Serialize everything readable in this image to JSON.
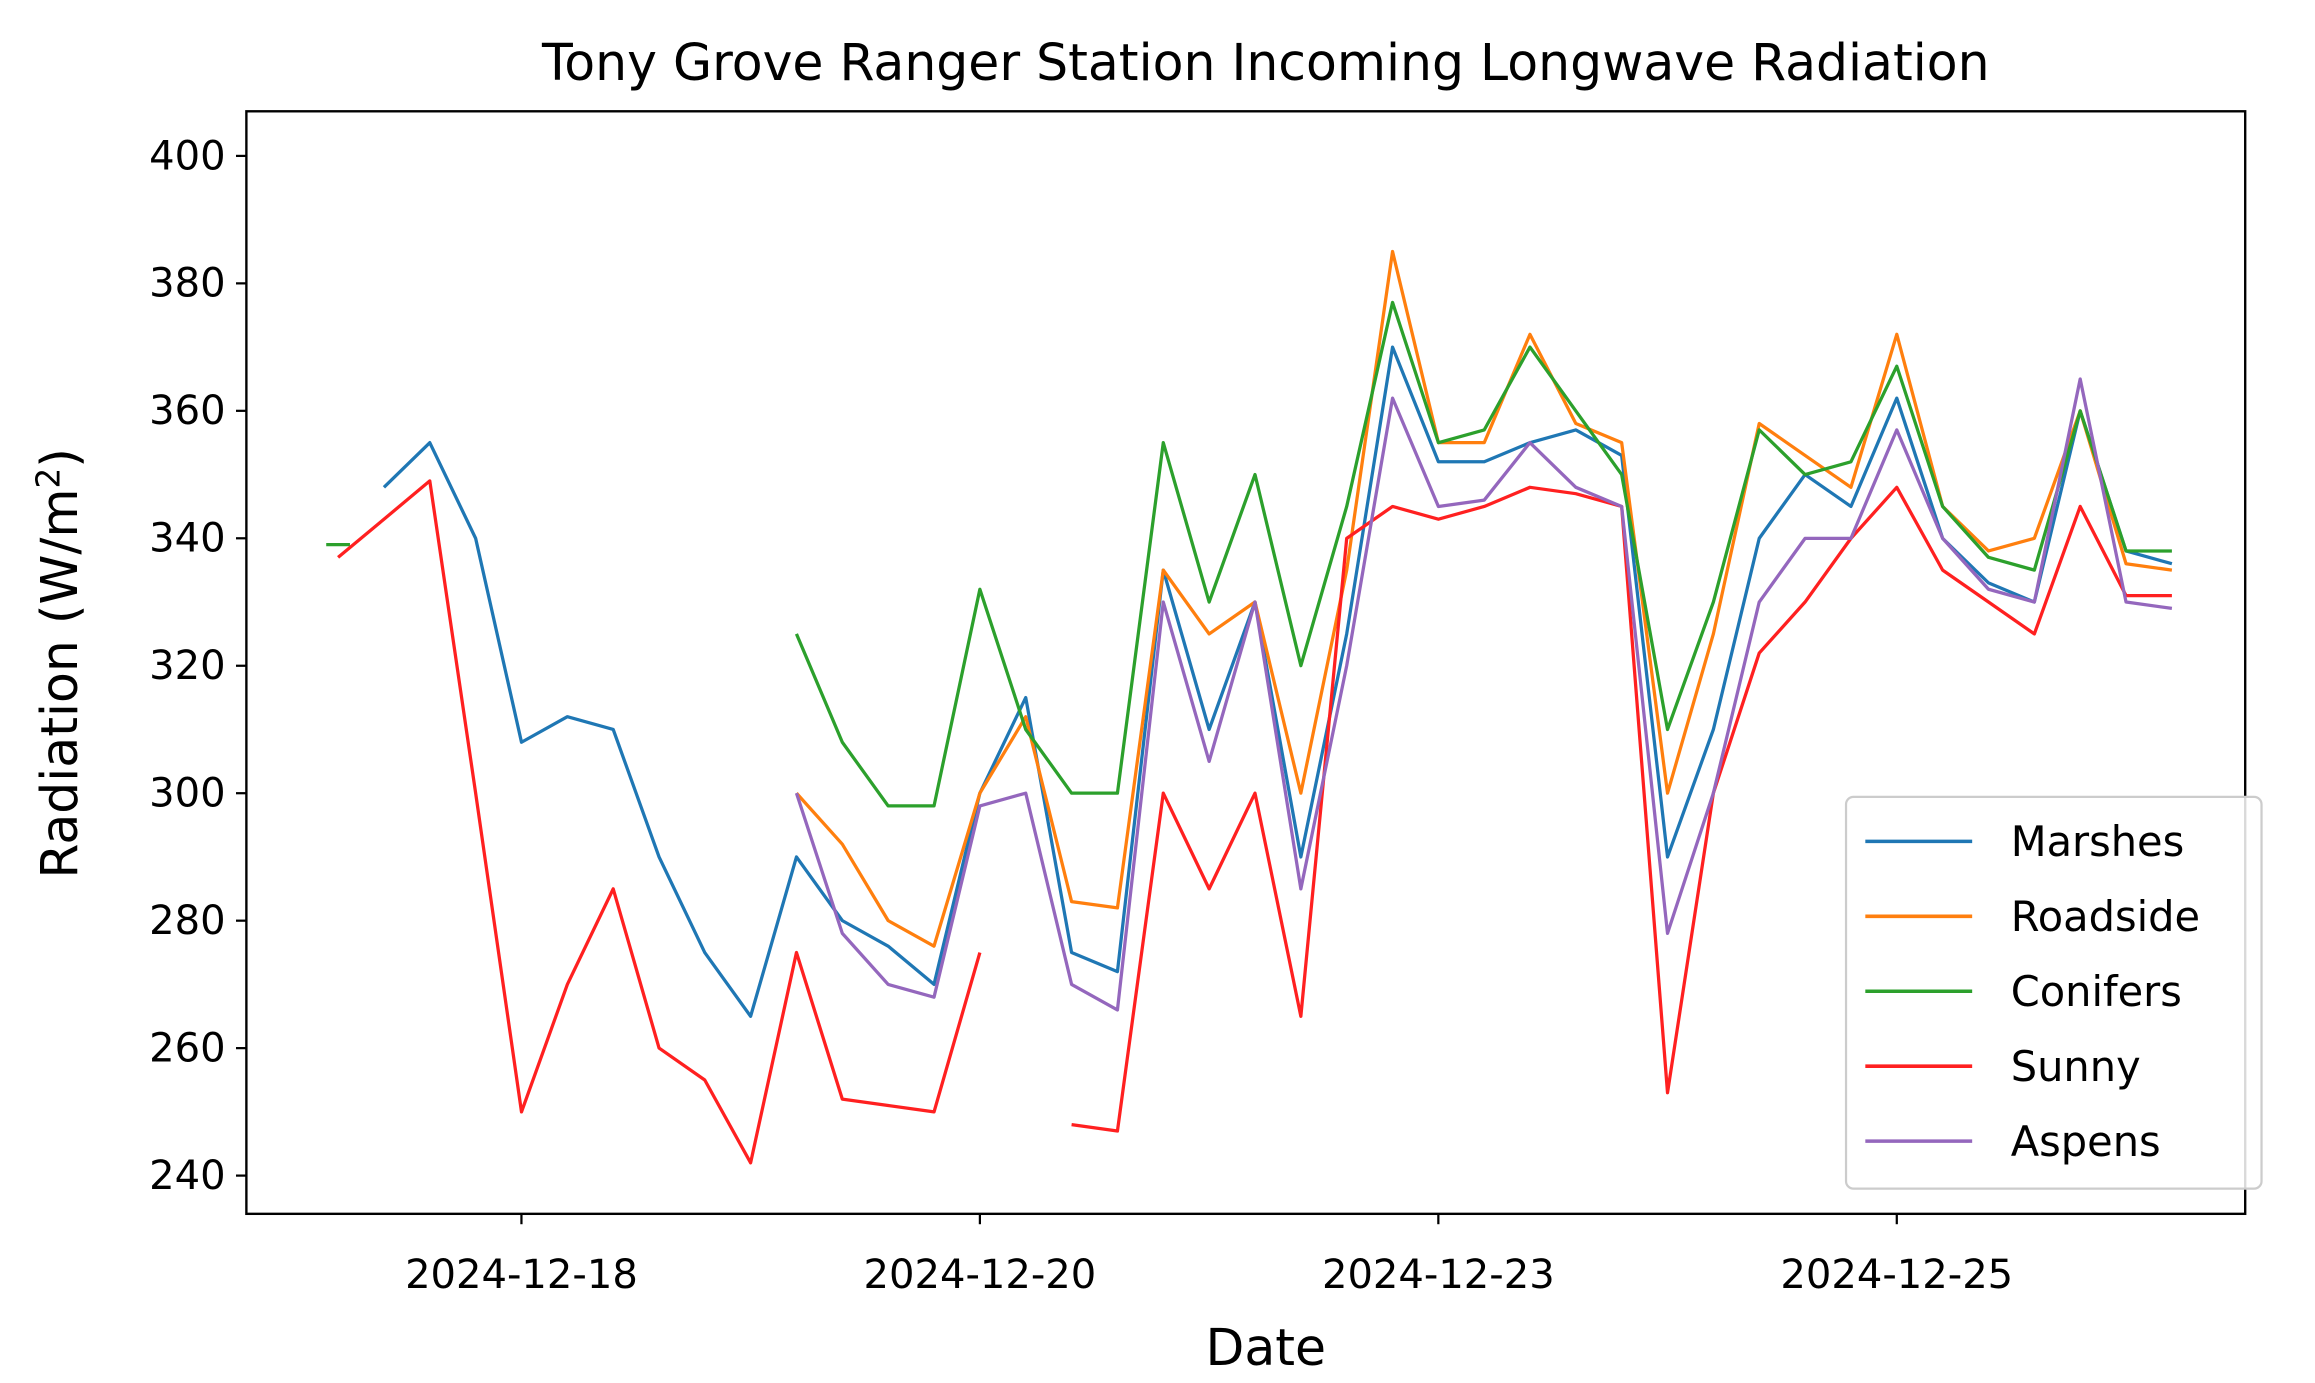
{
  "chart_data": {
    "type": "line",
    "title": "Tony Grove Ranger Station Incoming Longwave Radiation",
    "xlabel": "Date",
    "ylabel": "Radiation (W/m²)",
    "ylabel_main": "Radiation (W/m",
    "ylabel_sup": "2",
    "ylabel_close": ")",
    "ylim": [
      234,
      407
    ],
    "xlim_days_of_december": [
      16.5,
      27.4
    ],
    "yticks": [
      240,
      260,
      280,
      300,
      320,
      340,
      360,
      380,
      400
    ],
    "xticks": [
      {
        "value": 18.0,
        "label": "2024-12-18"
      },
      {
        "value": 20.5,
        "label": "2024-12-20"
      },
      {
        "value": 23.0,
        "label": "2024-12-23"
      },
      {
        "value": 25.5,
        "label": "2024-12-25"
      }
    ],
    "legend_position": "lower-right",
    "grid": false,
    "x": [
      17.0,
      17.25,
      17.5,
      17.75,
      18.0,
      18.25,
      18.5,
      18.75,
      19.0,
      19.25,
      19.5,
      19.75,
      20.0,
      20.25,
      20.5,
      20.75,
      21.0,
      21.25,
      21.5,
      21.75,
      22.0,
      22.25,
      22.5,
      22.75,
      23.0,
      23.25,
      23.5,
      23.75,
      24.0,
      24.25,
      24.5,
      24.75,
      25.0,
      25.25,
      25.5,
      25.75,
      26.0,
      26.25,
      26.5,
      26.75,
      27.0
    ],
    "series": [
      {
        "name": "Marshes",
        "color": "#1f77b4",
        "values": [
          null,
          348,
          355,
          340,
          308,
          312,
          310,
          290,
          275,
          265,
          290,
          280,
          276,
          270,
          300,
          315,
          275,
          272,
          335,
          310,
          330,
          290,
          325,
          370,
          352,
          352,
          355,
          357,
          353,
          290,
          310,
          340,
          350,
          345,
          362,
          340,
          333,
          330,
          360,
          338,
          336
        ]
      },
      {
        "name": "Roadside",
        "color": "#ff7f0e",
        "values": [
          null,
          null,
          null,
          null,
          null,
          null,
          null,
          null,
          null,
          null,
          300,
          292,
          280,
          276,
          300,
          312,
          283,
          282,
          335,
          325,
          330,
          300,
          335,
          385,
          355,
          355,
          372,
          358,
          355,
          300,
          325,
          358,
          353,
          348,
          372,
          345,
          338,
          340,
          360,
          336,
          335
        ]
      },
      {
        "name": "Conifers",
        "color": "#2ca02c",
        "values": [
          339,
          null,
          null,
          null,
          null,
          null,
          null,
          null,
          null,
          null,
          325,
          308,
          298,
          298,
          332,
          310,
          300,
          300,
          355,
          330,
          350,
          320,
          345,
          377,
          355,
          357,
          370,
          360,
          350,
          310,
          330,
          357,
          350,
          352,
          367,
          345,
          337,
          335,
          360,
          338,
          338
        ]
      },
      {
        "name": "Sunny",
        "color": "#ff2020",
        "values": [
          337,
          343,
          349,
          300,
          250,
          270,
          285,
          260,
          255,
          242,
          275,
          252,
          251,
          250,
          275,
          null,
          248,
          247,
          300,
          285,
          300,
          265,
          340,
          345,
          343,
          345,
          348,
          347,
          345,
          253,
          300,
          322,
          330,
          340,
          348,
          335,
          330,
          325,
          345,
          331,
          331
        ]
      },
      {
        "name": "Aspens",
        "color": "#9467bd",
        "values": [
          null,
          null,
          null,
          null,
          null,
          null,
          null,
          null,
          null,
          null,
          300,
          278,
          270,
          268,
          298,
          300,
          270,
          266,
          330,
          305,
          330,
          285,
          320,
          362,
          345,
          346,
          355,
          348,
          345,
          278,
          300,
          330,
          340,
          340,
          357,
          340,
          332,
          330,
          365,
          330,
          329
        ]
      }
    ]
  }
}
